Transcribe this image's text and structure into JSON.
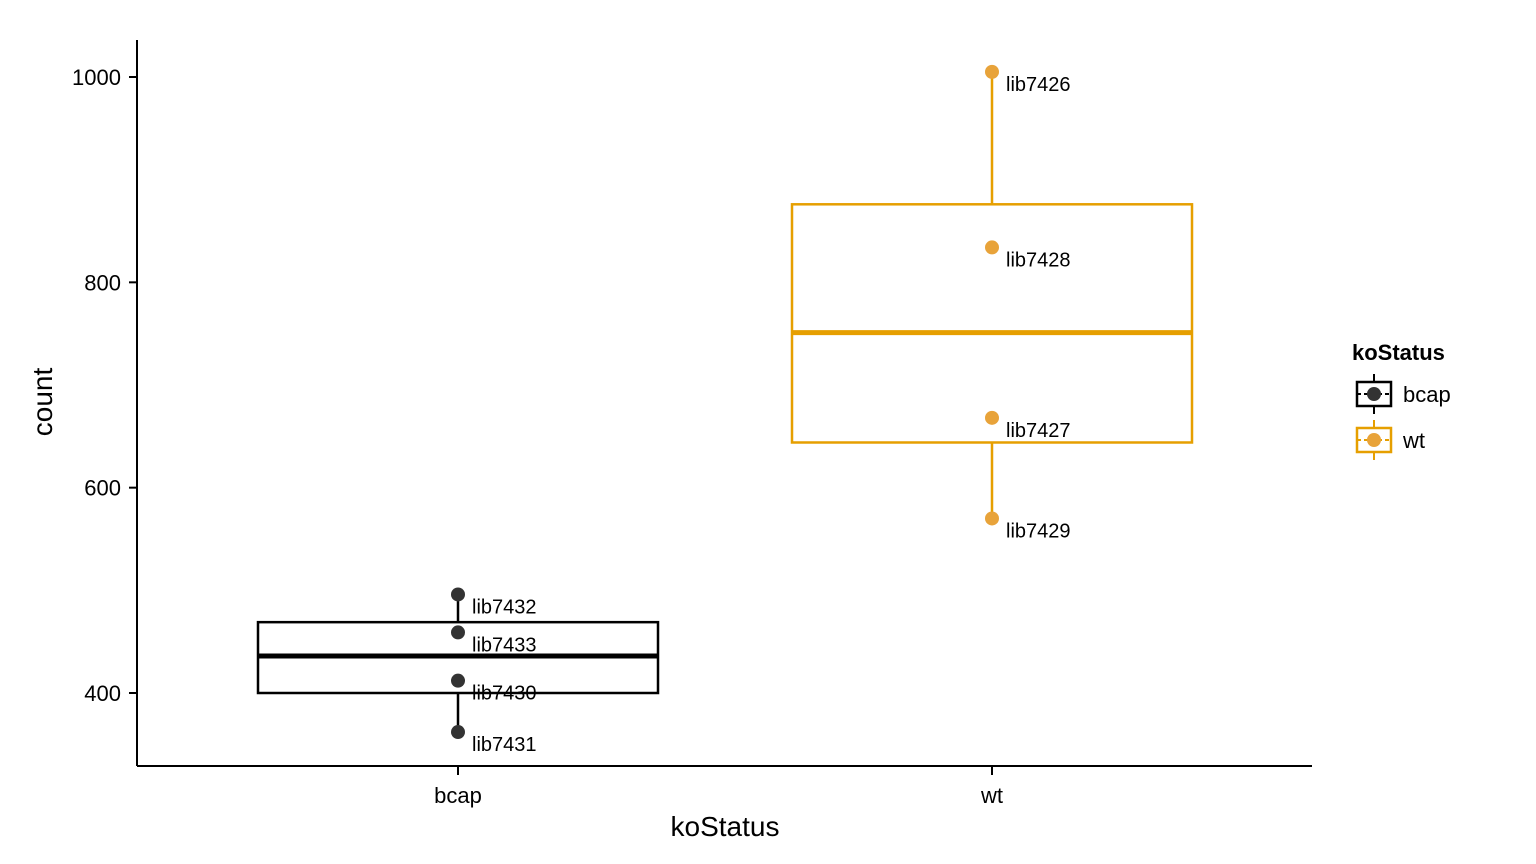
{
  "chart_data": {
    "type": "box",
    "xlabel": "koStatus",
    "ylabel": "count",
    "categories": [
      "bcap",
      "wt"
    ],
    "ylim": [
      330,
      1035
    ],
    "yticks": [
      400,
      600,
      800,
      1000
    ],
    "grid": false,
    "legend": {
      "title": "koStatus",
      "placement": "right",
      "entries": [
        {
          "name": "bcap",
          "color": "#000000"
        },
        {
          "name": "wt",
          "color": "#E69F00"
        }
      ]
    },
    "series": [
      {
        "name": "bcap",
        "color": "#000000",
        "point_color": "#333333",
        "box": {
          "min": 362,
          "q1": 400,
          "median": 436,
          "q3": 469,
          "max": 496
        },
        "points": [
          {
            "label": "lib7432",
            "value": 496
          },
          {
            "label": "lib7433",
            "value": 459
          },
          {
            "label": "lib7430",
            "value": 412
          },
          {
            "label": "lib7431",
            "value": 362
          }
        ]
      },
      {
        "name": "wt",
        "color": "#E69F00",
        "point_color": "#E8A33A",
        "box": {
          "min": 570,
          "q1": 644,
          "median": 751,
          "q3": 876,
          "max": 1005
        },
        "points": [
          {
            "label": "lib7426",
            "value": 1005
          },
          {
            "label": "lib7428",
            "value": 834
          },
          {
            "label": "lib7427",
            "value": 668
          },
          {
            "label": "lib7429",
            "value": 570
          }
        ]
      }
    ]
  }
}
